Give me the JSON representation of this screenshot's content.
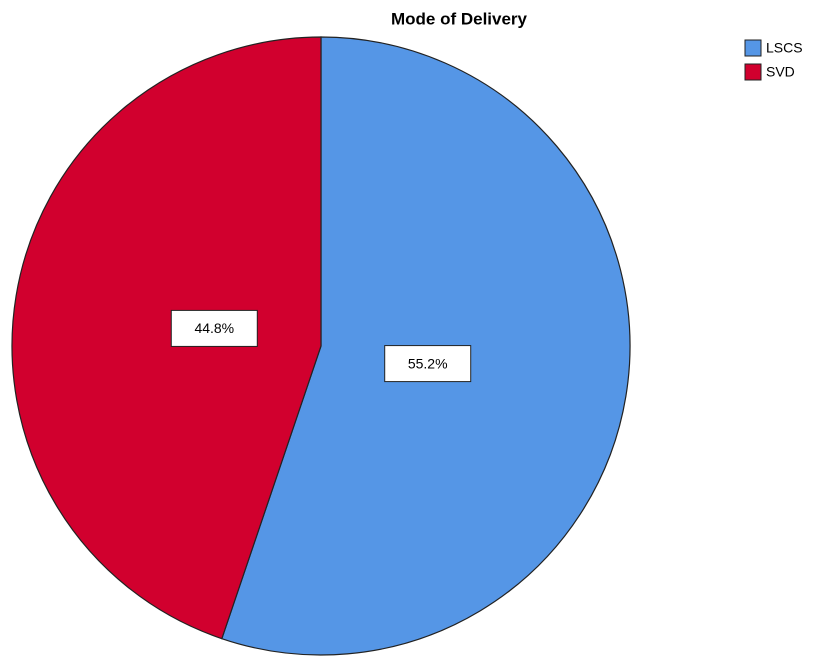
{
  "chart_data": {
    "type": "pie",
    "title": "Mode of Delivery",
    "categories": [
      "LSCS",
      "SVD"
    ],
    "values": [
      55.2,
      44.8
    ],
    "value_labels": [
      "55.2%",
      "44.8%"
    ],
    "colors": [
      "#5596e6",
      "#d1002e"
    ],
    "legend": "top-right"
  }
}
